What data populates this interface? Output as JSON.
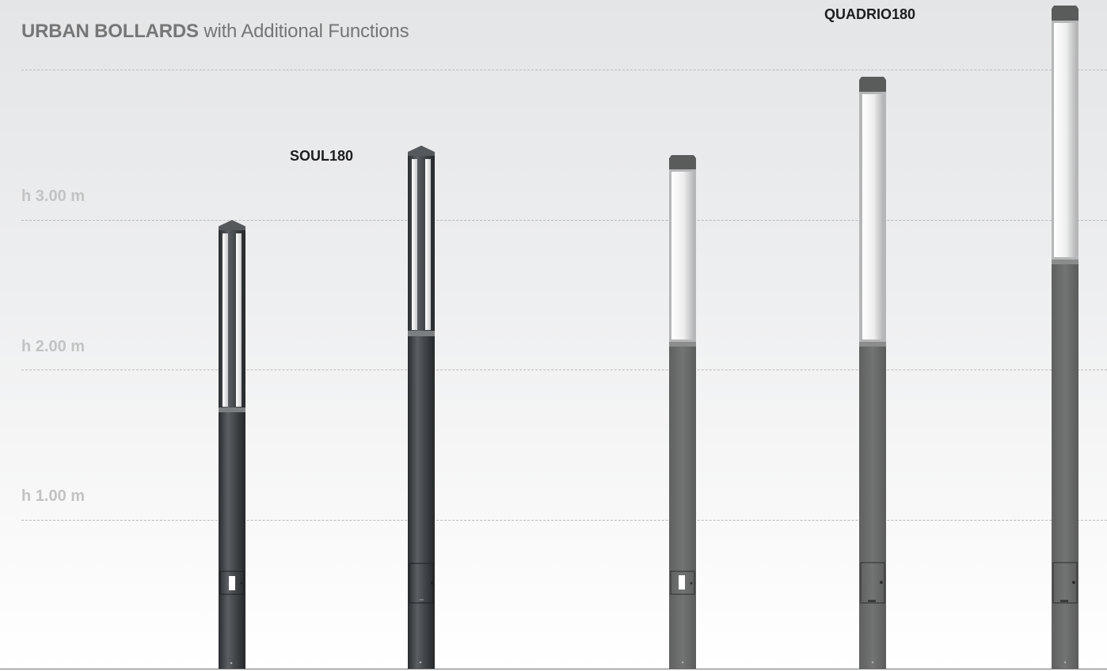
{
  "header": {
    "title_bold": "URBAN BOLLARDS",
    "title_rest": " with Additional Functions"
  },
  "height_scale": {
    "labels": [
      "h 1.00 m",
      "h 2.00 m",
      "h 3.00 m"
    ]
  },
  "products": {
    "soul180": "SOUL180",
    "quadrio180": "QUADRIO180"
  },
  "colors": {
    "soul_body": "#3f4245",
    "quadrio_body": "#6e706f",
    "gridline": "#bdbdbd",
    "height_label": "#c3c3c3"
  }
}
